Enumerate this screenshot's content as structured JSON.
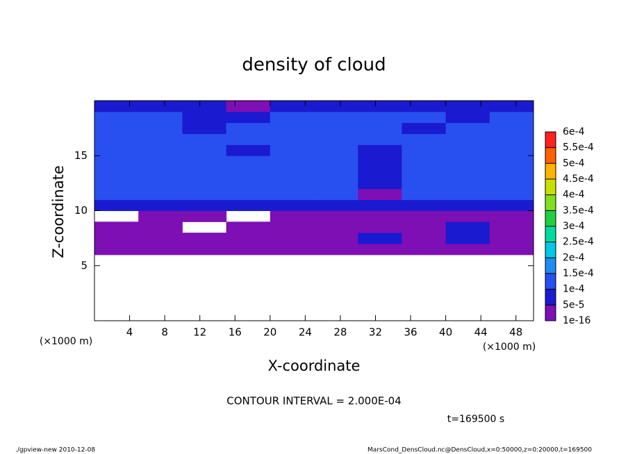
{
  "chart_data": {
    "type": "heatmap",
    "title": "density of cloud",
    "x_label": "X-coordinate",
    "y_label": "Z-coordinate",
    "x_unit": "(×1000 m)",
    "xlim": [
      0,
      50
    ],
    "xticks": [
      4,
      8,
      12,
      16,
      20,
      24,
      28,
      32,
      36,
      40,
      44,
      48
    ],
    "ylim": [
      0,
      20
    ],
    "yticks": [
      5,
      10,
      15
    ],
    "x_edges": [
      0,
      5,
      10,
      15,
      20,
      25,
      30,
      35,
      40,
      45,
      50
    ],
    "y_edges": [
      6,
      7,
      8,
      9,
      10,
      11,
      12,
      13,
      14,
      15,
      16,
      17,
      18,
      19,
      20
    ],
    "z": [
      [
        2e-05,
        2e-05,
        2e-05,
        2e-05,
        2e-05,
        2e-05,
        2e-05,
        2e-05,
        2e-05,
        2e-05
      ],
      [
        2e-05,
        2e-05,
        2e-05,
        2e-05,
        2e-05,
        2e-05,
        7e-05,
        2e-05,
        7e-05,
        2e-05
      ],
      [
        2e-05,
        2e-05,
        null,
        2e-05,
        2e-05,
        2e-05,
        2e-05,
        2e-05,
        7e-05,
        2e-05
      ],
      [
        null,
        2e-05,
        2e-05,
        null,
        2e-05,
        2e-05,
        2e-05,
        2e-05,
        2e-05,
        2e-05
      ],
      [
        8e-05,
        8e-05,
        8e-05,
        8e-05,
        8e-05,
        8e-05,
        5e-05,
        8e-05,
        8e-05,
        8e-05
      ],
      [
        0.00011,
        0.00011,
        0.00011,
        0.00011,
        0.00011,
        0.00011,
        4e-05,
        0.00011,
        0.00011,
        0.00011
      ],
      [
        0.00012,
        0.00012,
        0.00012,
        0.00012,
        0.00012,
        0.00012,
        7e-05,
        0.00012,
        0.00012,
        0.00012
      ],
      [
        0.00013,
        0.00012,
        0.00012,
        0.00012,
        0.00012,
        0.00012,
        8e-05,
        0.00012,
        0.00012,
        0.00012
      ],
      [
        0.00013,
        0.00012,
        0.00012,
        0.00012,
        0.00012,
        0.00012,
        7e-05,
        0.00012,
        0.00012,
        0.00012
      ],
      [
        0.00012,
        0.00012,
        0.00012,
        7e-05,
        0.00012,
        0.00012,
        9e-05,
        0.00012,
        0.00012,
        0.00012
      ],
      [
        0.00012,
        0.00012,
        0.00012,
        0.00012,
        0.00012,
        0.00012,
        0.00012,
        0.00012,
        0.00012,
        0.00012
      ],
      [
        0.00011,
        0.00011,
        8e-05,
        0.00011,
        0.00011,
        0.00011,
        0.00011,
        8e-05,
        0.00011,
        0.00011
      ],
      [
        0.00011,
        0.00011,
        7e-05,
        8e-05,
        0.00011,
        0.00011,
        0.00011,
        0.00011,
        8e-05,
        0.00011
      ],
      [
        8e-05,
        8e-05,
        6e-05,
        4e-05,
        8e-05,
        8e-05,
        6e-05,
        8e-05,
        8e-05,
        8e-05
      ]
    ],
    "levels": [
      {
        "value": 1e-16,
        "label": "1e-16"
      },
      {
        "value": 5e-05,
        "label": "5e-5"
      },
      {
        "value": 0.0001,
        "label": "1e-4"
      },
      {
        "value": 0.00015,
        "label": "1.5e-4"
      },
      {
        "value": 0.0002,
        "label": "2e-4"
      },
      {
        "value": 0.00025,
        "label": "2.5e-4"
      },
      {
        "value": 0.0003,
        "label": "3e-4"
      },
      {
        "value": 0.00035,
        "label": "3.5e-4"
      },
      {
        "value": 0.0004,
        "label": "4e-4"
      },
      {
        "value": 0.00045,
        "label": "4.5e-4"
      },
      {
        "value": 0.0005,
        "label": "5e-4"
      },
      {
        "value": 0.00055,
        "label": "5.5e-4"
      },
      {
        "value": 0.0006,
        "label": "6e-4"
      }
    ],
    "colors": [
      "#7d0fb4",
      "#1a1ad0",
      "#2850f0",
      "#1e8cf0",
      "#00c8e6",
      "#00dca0",
      "#20d040",
      "#80e020",
      "#c8e000",
      "#ffb400",
      "#ff6000",
      "#ff2020"
    ],
    "annotations": [
      "CONTOUR INTERVAL = 2.000E-04",
      "t=169500 s"
    ],
    "footer_left": "./gpview-new  2010-12-08",
    "footer_right": "MarsCond_DensCloud.nc@DensCloud,x=0:50000,z=0:20000,t=169500"
  }
}
